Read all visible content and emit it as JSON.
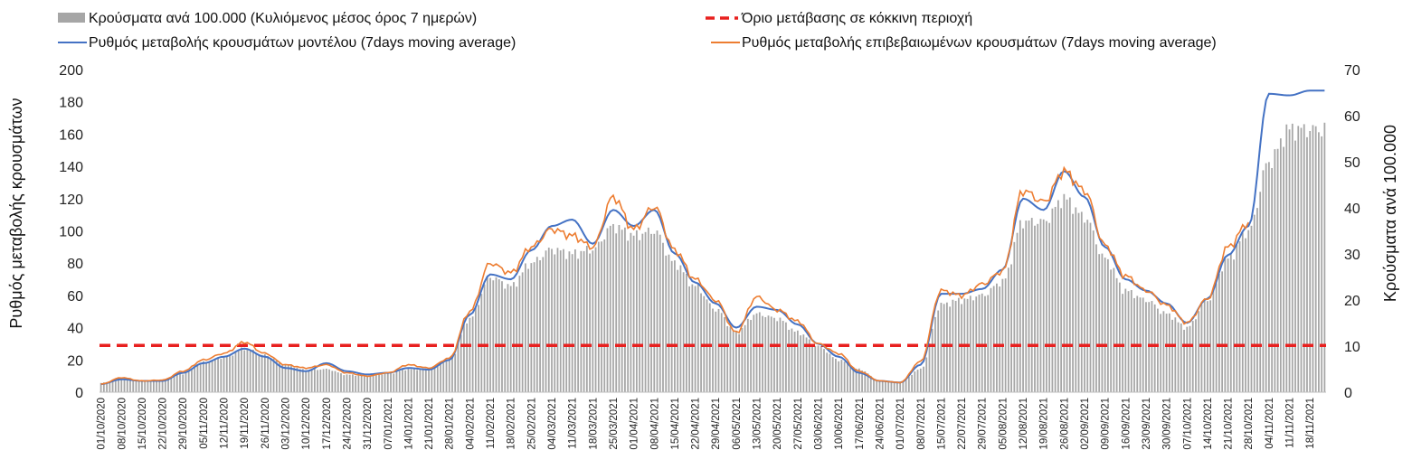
{
  "chart_data": {
    "type": "bar+line",
    "ylabel_left": "Ρυθμός μεταβολής κρουσμάτων",
    "ylabel_right": "Κρούσματα ανά 100.000",
    "ylim_left": [
      0,
      200
    ],
    "ylim_right": [
      0,
      70
    ],
    "yticks_left": [
      "0",
      "20",
      "40",
      "60",
      "80",
      "100",
      "120",
      "140",
      "160",
      "180",
      "200"
    ],
    "yticks_right": [
      "0",
      "10",
      "20",
      "30",
      "40",
      "50",
      "60",
      "70"
    ],
    "x_tick_labels": [
      "01/10/2020",
      "08/10/2020",
      "15/10/2020",
      "22/10/2020",
      "29/10/2020",
      "05/11/2020",
      "12/11/2020",
      "19/11/2020",
      "26/11/2020",
      "03/12/2020",
      "10/12/2020",
      "17/12/2020",
      "24/12/2020",
      "31/12/2020",
      "07/01/2021",
      "14/01/2021",
      "21/01/2021",
      "28/01/2021",
      "04/02/2021",
      "11/02/2021",
      "18/02/2021",
      "25/02/2021",
      "04/03/2021",
      "11/03/2021",
      "18/03/2021",
      "25/03/2021",
      "01/04/2021",
      "08/04/2021",
      "15/04/2021",
      "22/04/2021",
      "29/04/2021",
      "06/05/2021",
      "13/05/2021",
      "20/05/2021",
      "27/05/2021",
      "03/06/2021",
      "10/06/2021",
      "17/06/2021",
      "24/06/2021",
      "01/07/2021",
      "08/07/2021",
      "15/07/2021",
      "22/07/2021",
      "29/07/2021",
      "05/08/2021",
      "12/08/2021",
      "19/08/2021",
      "26/08/2021",
      "02/09/2021",
      "09/09/2021",
      "16/09/2021",
      "23/09/2021",
      "30/09/2021",
      "07/10/2021",
      "14/10/2021",
      "21/10/2021",
      "28/10/2021",
      "04/11/2021",
      "11/11/2021",
      "18/11/2021"
    ],
    "start_date": "2020-10-01",
    "end_date": "2021-11-23",
    "threshold": {
      "name": "Όριο μετάβασης σε κόκκινη περιοχή",
      "value": 29,
      "color": "#e8201f"
    },
    "series": [
      {
        "name": "Κρούσματα ανά 100.000 (Κυλιόμενος μέσος όρος 7 ημερών)",
        "type": "bar",
        "axis": "right",
        "color": "#a6a6a6",
        "points": [
          [
            "2020-10-01",
            2
          ],
          [
            "2020-10-08",
            3
          ],
          [
            "2020-10-15",
            2.5
          ],
          [
            "2020-10-22",
            2.7
          ],
          [
            "2020-10-29",
            4
          ],
          [
            "2020-11-05",
            6.5
          ],
          [
            "2020-11-12",
            7.5
          ],
          [
            "2020-11-19",
            9.5
          ],
          [
            "2020-11-26",
            8
          ],
          [
            "2020-12-03",
            6
          ],
          [
            "2020-12-10",
            4.8
          ],
          [
            "2020-12-17",
            5
          ],
          [
            "2020-12-24",
            3.8
          ],
          [
            "2020-12-31",
            3.5
          ],
          [
            "2021-01-07",
            4
          ],
          [
            "2021-01-14",
            5
          ],
          [
            "2021-01-21",
            5
          ],
          [
            "2021-01-28",
            7
          ],
          [
            "2021-02-04",
            16
          ],
          [
            "2021-02-11",
            25
          ],
          [
            "2021-02-18",
            23
          ],
          [
            "2021-02-25",
            28
          ],
          [
            "2021-03-04",
            31
          ],
          [
            "2021-03-11",
            30
          ],
          [
            "2021-03-18",
            31
          ],
          [
            "2021-03-25",
            36
          ],
          [
            "2021-04-01",
            34
          ],
          [
            "2021-04-08",
            35
          ],
          [
            "2021-04-15",
            28
          ],
          [
            "2021-04-22",
            23
          ],
          [
            "2021-04-29",
            18
          ],
          [
            "2021-05-06",
            13
          ],
          [
            "2021-05-13",
            17
          ],
          [
            "2021-05-20",
            16
          ],
          [
            "2021-05-27",
            13
          ],
          [
            "2021-06-03",
            10
          ],
          [
            "2021-06-10",
            7
          ],
          [
            "2021-06-17",
            5
          ],
          [
            "2021-06-24",
            2.5
          ],
          [
            "2021-07-01",
            2.2
          ],
          [
            "2021-07-08",
            5
          ],
          [
            "2021-07-15",
            19
          ],
          [
            "2021-07-22",
            20
          ],
          [
            "2021-07-29",
            21
          ],
          [
            "2021-08-05",
            24
          ],
          [
            "2021-08-12",
            37
          ],
          [
            "2021-08-19",
            37
          ],
          [
            "2021-08-26",
            42
          ],
          [
            "2021-09-02",
            38
          ],
          [
            "2021-09-09",
            29
          ],
          [
            "2021-09-16",
            22
          ],
          [
            "2021-09-23",
            20
          ],
          [
            "2021-09-30",
            17
          ],
          [
            "2021-10-07",
            14
          ],
          [
            "2021-10-14",
            20
          ],
          [
            "2021-10-21",
            29
          ],
          [
            "2021-10-28",
            35
          ],
          [
            "2021-11-04",
            50
          ],
          [
            "2021-11-11",
            57
          ],
          [
            "2021-11-18",
            57
          ],
          [
            "2021-11-23",
            57
          ]
        ]
      },
      {
        "name": "Ρυθμός μεταβολής κρουσμάτων μοντέλου (7days moving average)",
        "type": "line",
        "axis": "left",
        "color": "#4472c4",
        "points": [
          [
            "2020-10-01",
            5
          ],
          [
            "2020-10-08",
            8
          ],
          [
            "2020-10-15",
            7
          ],
          [
            "2020-10-22",
            7
          ],
          [
            "2020-10-29",
            12
          ],
          [
            "2020-11-05",
            18
          ],
          [
            "2020-11-12",
            22
          ],
          [
            "2020-11-19",
            27
          ],
          [
            "2020-11-26",
            22
          ],
          [
            "2020-12-03",
            15
          ],
          [
            "2020-12-10",
            13
          ],
          [
            "2020-12-17",
            18
          ],
          [
            "2020-12-24",
            13
          ],
          [
            "2020-12-31",
            11
          ],
          [
            "2021-01-07",
            12
          ],
          [
            "2021-01-14",
            15
          ],
          [
            "2021-01-21",
            14
          ],
          [
            "2021-01-28",
            20
          ],
          [
            "2021-02-04",
            48
          ],
          [
            "2021-02-11",
            73
          ],
          [
            "2021-02-18",
            70
          ],
          [
            "2021-02-25",
            88
          ],
          [
            "2021-03-04",
            103
          ],
          [
            "2021-03-11",
            107
          ],
          [
            "2021-03-18",
            92
          ],
          [
            "2021-03-25",
            113
          ],
          [
            "2021-04-01",
            103
          ],
          [
            "2021-04-08",
            113
          ],
          [
            "2021-04-15",
            86
          ],
          [
            "2021-04-22",
            68
          ],
          [
            "2021-04-29",
            55
          ],
          [
            "2021-05-06",
            40
          ],
          [
            "2021-05-13",
            53
          ],
          [
            "2021-05-20",
            51
          ],
          [
            "2021-05-27",
            42
          ],
          [
            "2021-06-03",
            30
          ],
          [
            "2021-06-10",
            22
          ],
          [
            "2021-06-17",
            12
          ],
          [
            "2021-06-24",
            7
          ],
          [
            "2021-07-01",
            6
          ],
          [
            "2021-07-08",
            17
          ],
          [
            "2021-07-15",
            61
          ],
          [
            "2021-07-22",
            61
          ],
          [
            "2021-07-29",
            64
          ],
          [
            "2021-08-05",
            76
          ],
          [
            "2021-08-12",
            120
          ],
          [
            "2021-08-19",
            113
          ],
          [
            "2021-08-26",
            137
          ],
          [
            "2021-09-02",
            121
          ],
          [
            "2021-09-09",
            90
          ],
          [
            "2021-09-16",
            70
          ],
          [
            "2021-09-23",
            63
          ],
          [
            "2021-09-30",
            55
          ],
          [
            "2021-10-07",
            43
          ],
          [
            "2021-10-14",
            58
          ],
          [
            "2021-10-21",
            85
          ],
          [
            "2021-10-28",
            103
          ],
          [
            "2021-11-04",
            185
          ],
          [
            "2021-11-11",
            184
          ],
          [
            "2021-11-18",
            187
          ],
          [
            "2021-11-23",
            187
          ]
        ]
      },
      {
        "name": "Ρυθμός μεταβολής επιβεβαιωμένων κρουσμάτων (7days moving average)",
        "type": "line",
        "axis": "left",
        "color": "#ed7d31",
        "points": [
          [
            "2020-10-01",
            5
          ],
          [
            "2020-10-08",
            9
          ],
          [
            "2020-10-15",
            7
          ],
          [
            "2020-10-22",
            7.5
          ],
          [
            "2020-10-29",
            13
          ],
          [
            "2020-11-05",
            20
          ],
          [
            "2020-11-12",
            24
          ],
          [
            "2020-11-19",
            31
          ],
          [
            "2020-11-26",
            24
          ],
          [
            "2020-12-03",
            17
          ],
          [
            "2020-12-10",
            15
          ],
          [
            "2020-12-17",
            17
          ],
          [
            "2020-12-24",
            12
          ],
          [
            "2020-12-31",
            10
          ],
          [
            "2021-01-07",
            12
          ],
          [
            "2021-01-14",
            17
          ],
          [
            "2021-01-21",
            15
          ],
          [
            "2021-01-28",
            21
          ],
          [
            "2021-02-04",
            50
          ],
          [
            "2021-02-11",
            80
          ],
          [
            "2021-02-18",
            74
          ],
          [
            "2021-02-25",
            90
          ],
          [
            "2021-03-04",
            101
          ],
          [
            "2021-03-11",
            97
          ],
          [
            "2021-03-18",
            90
          ],
          [
            "2021-03-25",
            121
          ],
          [
            "2021-04-01",
            101
          ],
          [
            "2021-04-08",
            115
          ],
          [
            "2021-04-15",
            88
          ],
          [
            "2021-04-22",
            70
          ],
          [
            "2021-04-29",
            57
          ],
          [
            "2021-05-06",
            37
          ],
          [
            "2021-05-13",
            59
          ],
          [
            "2021-05-20",
            51
          ],
          [
            "2021-05-27",
            44
          ],
          [
            "2021-06-03",
            30
          ],
          [
            "2021-06-10",
            24
          ],
          [
            "2021-06-17",
            13
          ],
          [
            "2021-06-24",
            7
          ],
          [
            "2021-07-01",
            6
          ],
          [
            "2021-07-08",
            19
          ],
          [
            "2021-07-15",
            63
          ],
          [
            "2021-07-22",
            60
          ],
          [
            "2021-07-29",
            67
          ],
          [
            "2021-08-05",
            75
          ],
          [
            "2021-08-12",
            125
          ],
          [
            "2021-08-19",
            118
          ],
          [
            "2021-08-26",
            137
          ],
          [
            "2021-09-02",
            125
          ],
          [
            "2021-09-09",
            91
          ],
          [
            "2021-09-16",
            72
          ],
          [
            "2021-09-23",
            63
          ],
          [
            "2021-09-30",
            54
          ],
          [
            "2021-10-07",
            43
          ],
          [
            "2021-10-14",
            58
          ],
          [
            "2021-10-21",
            90
          ],
          [
            "2021-10-28",
            105
          ],
          [
            "2021-11-04",
            null
          ]
        ]
      }
    ],
    "legend_placement": "top",
    "grid": false
  }
}
